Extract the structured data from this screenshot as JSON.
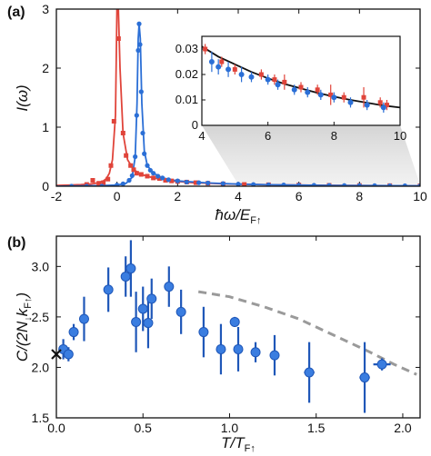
{
  "chart_data": [
    {
      "id": "a",
      "panel_label": "(a)",
      "type": "line",
      "xlabel": "ħω/E",
      "xlabel_sub": "F↑",
      "ylabel": "I(ω)",
      "xlim": [
        -2,
        10
      ],
      "ylim": [
        0,
        3
      ],
      "xticks": [
        "-2",
        "0",
        "2",
        "4",
        "6",
        "8",
        "10"
      ],
      "yticks": [
        "0",
        "1",
        "2",
        "3"
      ],
      "colors": {
        "red": "#e0443a",
        "blue": "#2b6fd6"
      },
      "series": [
        {
          "color": "red",
          "curve": [
            [
              -2,
              0.012
            ],
            [
              -1.6,
              0.018
            ],
            [
              -1.2,
              0.026
            ],
            [
              -0.9,
              0.036
            ],
            [
              -0.7,
              0.05
            ],
            [
              -0.55,
              0.07
            ],
            [
              -0.45,
              0.09
            ],
            [
              -0.35,
              0.13
            ],
            [
              -0.25,
              0.22
            ],
            [
              -0.15,
              0.45
            ],
            [
              -0.05,
              1.2
            ],
            [
              0.0,
              3.1
            ],
            [
              0.04,
              3.1
            ],
            [
              0.1,
              2.0
            ],
            [
              0.2,
              0.9
            ],
            [
              0.35,
              0.45
            ],
            [
              0.55,
              0.28
            ],
            [
              0.8,
              0.2
            ],
            [
              1.2,
              0.14
            ],
            [
              1.8,
              0.09
            ],
            [
              2.5,
              0.06
            ],
            [
              3.5,
              0.04
            ],
            [
              5,
              0.025
            ],
            [
              7,
              0.015
            ],
            [
              10,
              0.008
            ]
          ],
          "points": [
            [
              -1.0,
              0.03
            ],
            [
              -0.8,
              0.1
            ],
            [
              -0.6,
              0.05
            ],
            [
              -0.45,
              0.06
            ],
            [
              -0.3,
              0.12
            ],
            [
              -0.2,
              0.35
            ],
            [
              -0.1,
              1.1
            ],
            [
              0.05,
              2.5
            ],
            [
              0.2,
              0.9
            ],
            [
              0.3,
              0.52
            ],
            [
              0.45,
              0.35
            ],
            [
              0.55,
              0.28
            ],
            [
              0.65,
              0.22
            ],
            [
              0.8,
              0.2
            ],
            [
              1.0,
              0.17
            ],
            [
              1.2,
              0.14
            ],
            [
              1.4,
              0.13
            ],
            [
              1.6,
              0.1
            ],
            [
              1.8,
              0.09
            ],
            [
              2.0,
              0.08
            ],
            [
              2.3,
              0.07
            ],
            [
              2.6,
              0.06
            ],
            [
              3.0,
              0.05
            ],
            [
              3.5,
              0.04
            ],
            [
              4.2,
              0.03
            ],
            [
              5,
              0.025
            ],
            [
              6,
              0.02
            ],
            [
              7,
              0.015
            ],
            [
              8,
              0.012
            ],
            [
              9,
              0.01
            ],
            [
              10,
              0.008
            ]
          ]
        },
        {
          "color": "blue",
          "curve": [
            [
              -2,
              0.0
            ],
            [
              -0.5,
              0.01
            ],
            [
              0.0,
              0.02
            ],
            [
              0.3,
              0.05
            ],
            [
              0.5,
              0.15
            ],
            [
              0.6,
              0.5
            ],
            [
              0.66,
              1.4
            ],
            [
              0.7,
              2.5
            ],
            [
              0.73,
              2.75
            ],
            [
              0.77,
              2.5
            ],
            [
              0.82,
              1.4
            ],
            [
              0.9,
              0.6
            ],
            [
              1.0,
              0.35
            ],
            [
              1.2,
              0.22
            ],
            [
              1.5,
              0.14
            ],
            [
              2.0,
              0.09
            ],
            [
              3.0,
              0.055
            ],
            [
              4.0,
              0.035
            ],
            [
              5,
              0.024
            ],
            [
              6,
              0.018
            ],
            [
              7,
              0.014
            ],
            [
              8,
              0.011
            ],
            [
              10,
              0.007
            ]
          ],
          "points": [
            [
              -1.5,
              0.0
            ],
            [
              -1.0,
              0.0
            ],
            [
              -0.5,
              0.0
            ],
            [
              0.0,
              0.02
            ],
            [
              0.2,
              0.04
            ],
            [
              0.4,
              0.1
            ],
            [
              0.5,
              0.18
            ],
            [
              0.6,
              0.5
            ],
            [
              0.65,
              1.2
            ],
            [
              0.7,
              2.3
            ],
            [
              0.73,
              2.75
            ],
            [
              0.76,
              2.4
            ],
            [
              0.8,
              1.6
            ],
            [
              0.85,
              0.9
            ],
            [
              0.9,
              0.55
            ],
            [
              1.0,
              0.35
            ],
            [
              1.1,
              0.27
            ],
            [
              1.2,
              0.22
            ],
            [
              1.35,
              0.17
            ],
            [
              1.5,
              0.14
            ],
            [
              1.7,
              0.11
            ],
            [
              2.0,
              0.09
            ],
            [
              2.3,
              0.07
            ],
            [
              2.7,
              0.06
            ],
            [
              3.0,
              0.055
            ],
            [
              3.5,
              0.045
            ],
            [
              4.0,
              0.035
            ],
            [
              4.5,
              0.03
            ],
            [
              5,
              0.024
            ],
            [
              5.5,
              0.021
            ],
            [
              6,
              0.018
            ],
            [
              6.5,
              0.016
            ],
            [
              7,
              0.014
            ],
            [
              7.5,
              0.012
            ],
            [
              8,
              0.011
            ],
            [
              8.5,
              0.01
            ],
            [
              9,
              0.009
            ],
            [
              9.5,
              0.008
            ],
            [
              10,
              0.007
            ]
          ]
        }
      ]
    },
    {
      "id": "a-inset",
      "type": "scatter",
      "xlim": [
        4,
        10
      ],
      "ylim": [
        0,
        0.035
      ],
      "xticks": [
        "4",
        "6",
        "8",
        "10"
      ],
      "yticks": [
        "0",
        "0.01",
        "0.02",
        "0.03"
      ],
      "fit_curve": [
        [
          4,
          0.031
        ],
        [
          4.5,
          0.027
        ],
        [
          5,
          0.024
        ],
        [
          5.5,
          0.021
        ],
        [
          6,
          0.0185
        ],
        [
          6.5,
          0.0163
        ],
        [
          7,
          0.0145
        ],
        [
          7.5,
          0.0128
        ],
        [
          8,
          0.0113
        ],
        [
          8.5,
          0.01
        ],
        [
          9,
          0.0089
        ],
        [
          9.5,
          0.0078
        ],
        [
          10,
          0.007
        ]
      ],
      "series": [
        {
          "color": "red",
          "points": [
            [
              4.1,
              0.03,
              0.002
            ],
            [
              4.6,
              0.025,
              0.002
            ],
            [
              5.0,
              0.022,
              0.002
            ],
            [
              5.8,
              0.02,
              0.002
            ],
            [
              6.2,
              0.018,
              0.002
            ],
            [
              6.5,
              0.017,
              0.003
            ],
            [
              7.0,
              0.015,
              0.002
            ],
            [
              7.5,
              0.014,
              0.002
            ],
            [
              7.9,
              0.012,
              0.004
            ],
            [
              8.3,
              0.011,
              0.002
            ],
            [
              8.9,
              0.011,
              0.004
            ],
            [
              9.4,
              0.009,
              0.002
            ],
            [
              9.6,
              0.008,
              0.002
            ]
          ]
        },
        {
          "color": "blue",
          "points": [
            [
              4.3,
              0.025,
              0.004
            ],
            [
              4.5,
              0.023,
              0.003
            ],
            [
              4.8,
              0.022,
              0.003
            ],
            [
              5.2,
              0.02,
              0.003
            ],
            [
              5.5,
              0.019,
              0.002
            ],
            [
              6.0,
              0.018,
              0.002
            ],
            [
              6.3,
              0.016,
              0.002
            ],
            [
              6.8,
              0.014,
              0.002
            ],
            [
              7.2,
              0.013,
              0.002
            ],
            [
              7.6,
              0.012,
              0.002
            ],
            [
              8.0,
              0.011,
              0.002
            ],
            [
              8.5,
              0.009,
              0.002
            ],
            [
              9.0,
              0.008,
              0.002
            ],
            [
              9.5,
              0.007,
              0.002
            ]
          ]
        }
      ]
    },
    {
      "id": "b",
      "panel_label": "(b)",
      "type": "scatter",
      "xlabel": "T/T",
      "xlabel_sub": "F↑",
      "ylabel": "C/(2N",
      "ylabel_sub1": "↓",
      "ylabel_mid": "k",
      "ylabel_sub2": "F↑",
      "ylabel_end": ")",
      "xlim": [
        0,
        2.1
      ],
      "ylim": [
        1.5,
        3.3
      ],
      "xticks": [
        "0.0",
        "0.5",
        "1.0",
        "1.5",
        "2.0"
      ],
      "yticks": [
        "1.5",
        "2.0",
        "2.5",
        "3.0"
      ],
      "marker_x": [
        0.0,
        2.13
      ],
      "points": [
        {
          "x": 0.04,
          "y": 2.18,
          "yerr": 0.1,
          "xerr": 0
        },
        {
          "x": 0.07,
          "y": 2.13,
          "yerr": 0.07,
          "xerr": 0
        },
        {
          "x": 0.1,
          "y": 2.35,
          "yerr": 0.08,
          "xerr": 0
        },
        {
          "x": 0.16,
          "y": 2.48,
          "yerr": 0.22,
          "xerr": 0
        },
        {
          "x": 0.3,
          "y": 2.77,
          "yerr": 0.22,
          "xerr": 0
        },
        {
          "x": 0.4,
          "y": 2.9,
          "yerr": 0.2,
          "xerr": 0
        },
        {
          "x": 0.43,
          "y": 2.98,
          "yerr": 0.28,
          "xerr": 0
        },
        {
          "x": 0.46,
          "y": 2.45,
          "yerr": 0.3,
          "xerr": 0
        },
        {
          "x": 0.5,
          "y": 2.58,
          "yerr": 0.22,
          "xerr": 0
        },
        {
          "x": 0.53,
          "y": 2.44,
          "yerr": 0.25,
          "xerr": 0
        },
        {
          "x": 0.55,
          "y": 2.68,
          "yerr": 0.2,
          "xerr": 0
        },
        {
          "x": 0.65,
          "y": 2.8,
          "yerr": 0.2,
          "xerr": 0
        },
        {
          "x": 0.72,
          "y": 2.55,
          "yerr": 0.22,
          "xerr": 0
        },
        {
          "x": 0.85,
          "y": 2.35,
          "yerr": 0.25,
          "xerr": 0
        },
        {
          "x": 0.95,
          "y": 2.18,
          "yerr": 0.25,
          "xerr": 0
        },
        {
          "x": 1.03,
          "y": 2.45,
          "yerr": 0.05,
          "xerr": 0
        },
        {
          "x": 1.05,
          "y": 2.18,
          "yerr": 0.22,
          "xerr": 0
        },
        {
          "x": 1.15,
          "y": 2.15,
          "yerr": 0.1,
          "xerr": 0
        },
        {
          "x": 1.26,
          "y": 2.12,
          "yerr": 0.2,
          "xerr": 0
        },
        {
          "x": 1.46,
          "y": 1.95,
          "yerr": 0.3,
          "xerr": 0.03
        },
        {
          "x": 1.78,
          "y": 1.9,
          "yerr": 0.35,
          "xerr": 0.03
        },
        {
          "x": 1.88,
          "y": 2.03,
          "yerr": 0.06,
          "xerr": 0.05
        }
      ],
      "dashed_curve": [
        [
          0.82,
          2.75
        ],
        [
          1.0,
          2.7
        ],
        [
          1.2,
          2.6
        ],
        [
          1.4,
          2.48
        ],
        [
          1.6,
          2.32
        ],
        [
          1.8,
          2.16
        ],
        [
          1.95,
          2.03
        ],
        [
          2.08,
          1.93
        ]
      ]
    }
  ]
}
